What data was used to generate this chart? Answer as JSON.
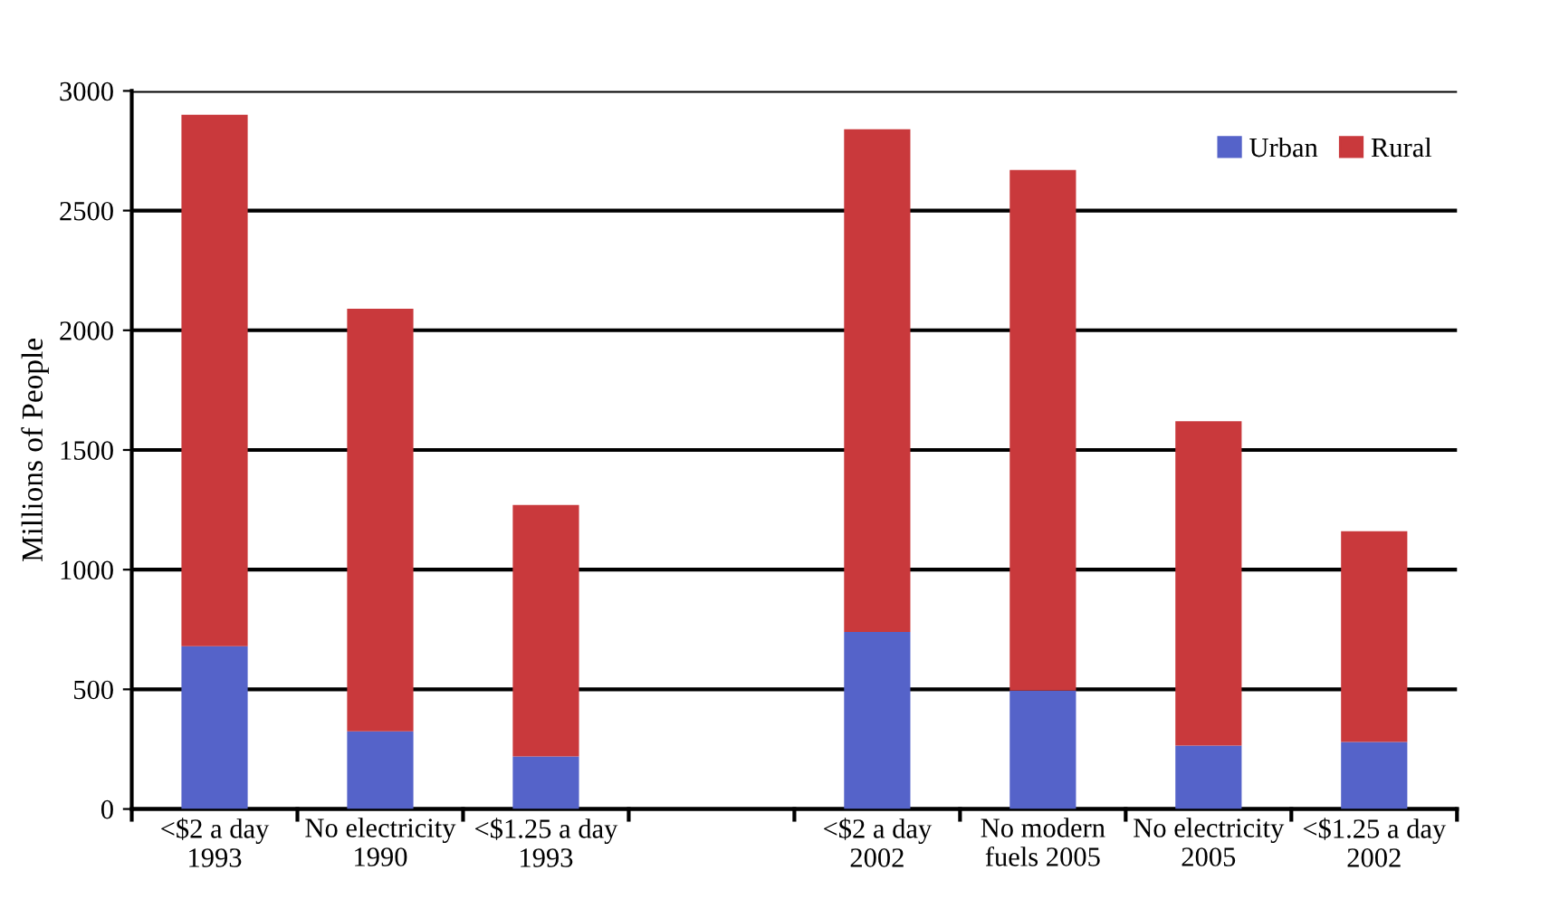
{
  "chart_data": {
    "type": "bar",
    "stacked": true,
    "ylabel": "Millions of People",
    "categories": [
      "<$2 a day\n1993",
      "No electricity\n1990",
      "<$1.25 a day\n1993",
      null,
      "<$2 a day\n2002",
      "No modern\nfuels 2005",
      "No electricity\n2005",
      "<$1.25 a day\n2002"
    ],
    "series": [
      {
        "name": "Urban",
        "color": "#5563c9",
        "values": [
          680,
          325,
          220,
          null,
          740,
          495,
          265,
          280
        ]
      },
      {
        "name": "Rural",
        "color": "#c9393c",
        "values": [
          2220,
          1765,
          1050,
          null,
          2100,
          2175,
          1355,
          880
        ]
      }
    ],
    "ylim": [
      0,
      3000
    ],
    "yticks": [
      0,
      500,
      1000,
      1500,
      2000,
      2500,
      3000
    ],
    "grid": "y",
    "legend": "top right"
  }
}
